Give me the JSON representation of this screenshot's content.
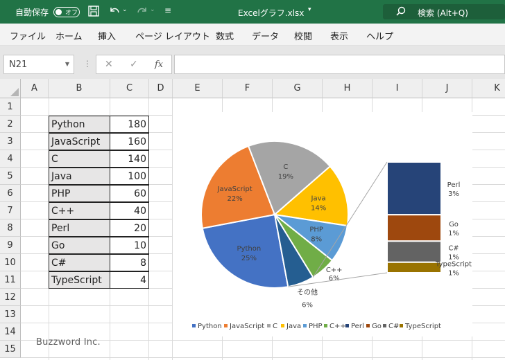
{
  "titlebar": {
    "autosave_label": "自動保存",
    "autosave_state": "オフ",
    "filename": "Excelグラフ.xlsx",
    "search_label": "検索 (Alt+Q)"
  },
  "menu": [
    "ファイル",
    "ホーム",
    "挿入",
    "ページ レイアウト",
    "数式",
    "データ",
    "校閲",
    "表示",
    "ヘルプ"
  ],
  "formula_bar": {
    "name_box": "N21",
    "fx": "fx",
    "value": ""
  },
  "columns": [
    "A",
    "B",
    "C",
    "D",
    "E",
    "F",
    "G",
    "H",
    "I",
    "J",
    "K"
  ],
  "rows": [
    "1",
    "2",
    "3",
    "4",
    "5",
    "6",
    "7",
    "8",
    "9",
    "10",
    "11",
    "12",
    "13",
    "14",
    "15"
  ],
  "table": [
    {
      "name": "Python",
      "value": "180"
    },
    {
      "name": "JavaScript",
      "value": "160"
    },
    {
      "name": "C",
      "value": "140"
    },
    {
      "name": "Java",
      "value": "100"
    },
    {
      "name": "PHP",
      "value": "60"
    },
    {
      "name": "C++",
      "value": "40"
    },
    {
      "name": "Perl",
      "value": "20"
    },
    {
      "name": "Go",
      "value": "10"
    },
    {
      "name": "C#",
      "value": "8"
    },
    {
      "name": "TypeScript",
      "value": "4"
    }
  ],
  "watermark": "Buzzword Inc.",
  "chart_data": {
    "type": "pie",
    "subtype": "bar-of-pie",
    "title": "",
    "series": [
      {
        "name": "Python",
        "value": 180,
        "percent": "25%",
        "color": "#4472C4"
      },
      {
        "name": "JavaScript",
        "value": 160,
        "percent": "22%",
        "color": "#ED7D31"
      },
      {
        "name": "C",
        "value": 140,
        "percent": "19%",
        "color": "#A5A5A5"
      },
      {
        "name": "Java",
        "value": 100,
        "percent": "14%",
        "color": "#FFC000"
      },
      {
        "name": "PHP",
        "value": 60,
        "percent": "8%",
        "color": "#5B9BD5"
      },
      {
        "name": "C++",
        "value": 40,
        "percent": "6%",
        "color": "#70AD47"
      },
      {
        "name": "Perl",
        "value": 20,
        "percent": "3%",
        "color": "#264478"
      },
      {
        "name": "Go",
        "value": 10,
        "percent": "1%",
        "color": "#9E480E"
      },
      {
        "name": "C#",
        "value": 8,
        "percent": "1%",
        "color": "#636363"
      },
      {
        "name": "TypeScript",
        "value": 4,
        "percent": "1%",
        "color": "#997300"
      }
    ],
    "other_slice": {
      "label": "その他",
      "percent": "6%",
      "color": "#255E91"
    },
    "legend": {
      "position": "bottom",
      "entries": [
        "Python",
        "JavaScript",
        "C",
        "Java",
        "PHP",
        "C++",
        "Perl",
        "Go",
        "C#",
        "TypeScript"
      ]
    }
  }
}
